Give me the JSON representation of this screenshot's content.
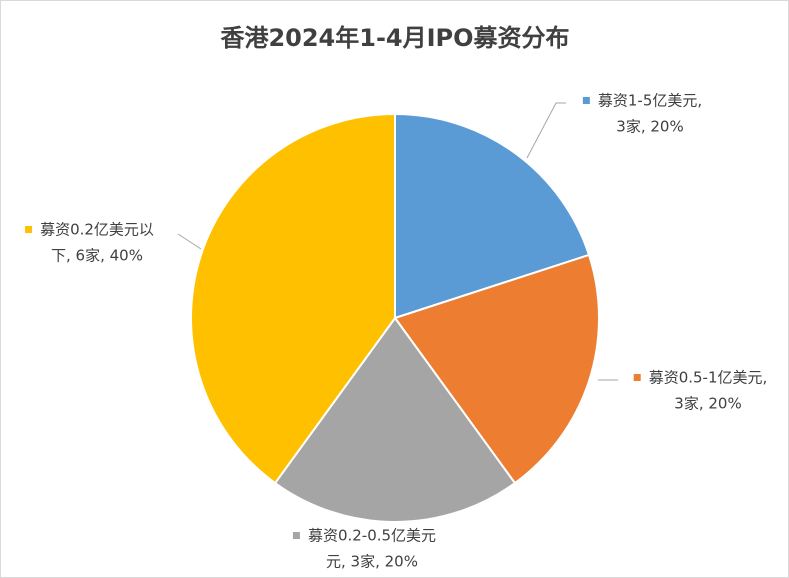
{
  "chart_data": {
    "type": "pie",
    "title": "香港2024年1-4月IPO募资分布",
    "categories": [
      "募资1-5亿美元",
      "募资0.5-1亿美元",
      "募资0.2-0.5亿美元",
      "募资0.2亿美元以下"
    ],
    "values": [
      20,
      20,
      20,
      40
    ],
    "value_labels": [
      [
        "募资1-5亿美元,",
        "3家, 20%"
      ],
      [
        "募资0.5-1亿美元,",
        "3家, 20%"
      ],
      [
        "募资0.2-0.5亿美元",
        "元, 3家, 20%"
      ],
      [
        "募资0.2亿美元以",
        "下, 6家, 40%"
      ]
    ],
    "colors": [
      "#5b9bd5",
      "#ed7d31",
      "#a5a5a5",
      "#ffc000"
    ]
  }
}
